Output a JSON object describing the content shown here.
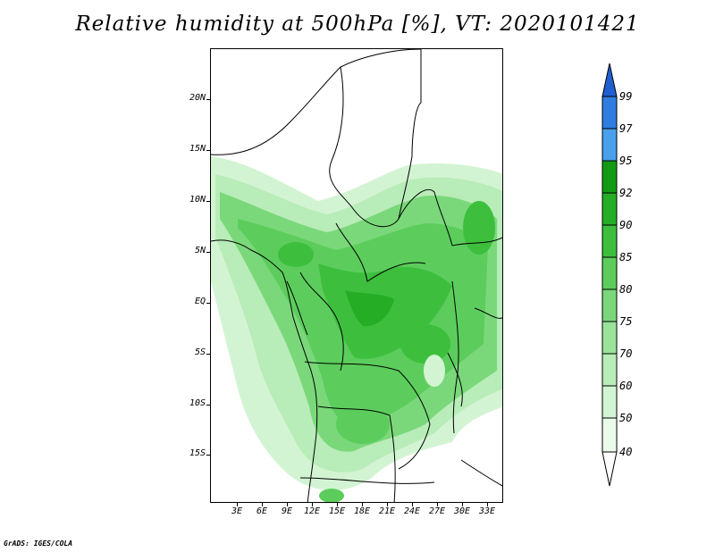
{
  "title": "Relative humidity at 500hPa [%], VT: 2020101421",
  "map": {
    "y_axis": [
      "20N",
      "15N",
      "10N",
      "5N",
      "EQ",
      "5S",
      "10S",
      "15S"
    ],
    "x_axis": [
      "3E",
      "6E",
      "9E",
      "12E",
      "15E",
      "18E",
      "21E",
      "24E",
      "27E",
      "30E",
      "33E"
    ]
  },
  "colorbar": {
    "labels": [
      "99",
      "97",
      "95",
      "92",
      "90",
      "85",
      "80",
      "75",
      "70",
      "60",
      "50",
      "40"
    ],
    "colors": [
      "#1f5fd0",
      "#2f7de0",
      "#4aa0ec",
      "#129a12",
      "#25ad25",
      "#3dbf3d",
      "#5ccd5c",
      "#7ad87a",
      "#9be39b",
      "#b8ecb8",
      "#d3f4d3",
      "#ebfbeb"
    ]
  },
  "credit": "GrADS: IGES/COLA"
}
